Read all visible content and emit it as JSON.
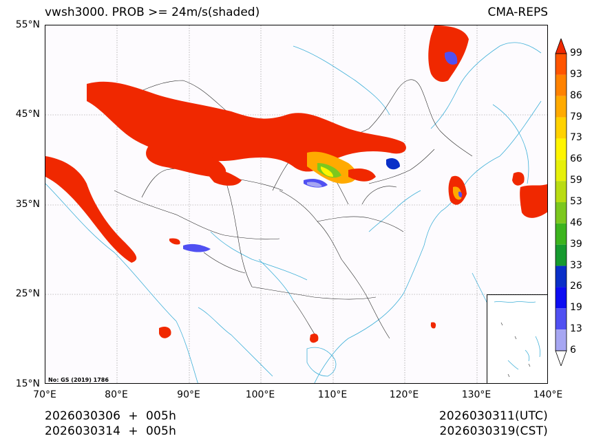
{
  "header": {
    "title_left": "vwsh3000. PROB >= 24m/s(shaded)",
    "title_right": "CMA-REPS"
  },
  "map": {
    "lat_ticks": [
      "55°N",
      "45°N",
      "35°N",
      "25°N",
      "15°N"
    ],
    "lon_ticks": [
      "70°E",
      "80°E",
      "90°E",
      "100°E",
      "110°E",
      "120°E",
      "130°E",
      "140°E"
    ],
    "copyright": "No: GS (2019) 1786"
  },
  "colorbar": {
    "labels": [
      "6",
      "13",
      "19",
      "26",
      "33",
      "39",
      "46",
      "53",
      "59",
      "66",
      "73",
      "79",
      "86",
      "93",
      "99"
    ],
    "colors": [
      "#a6a6f2",
      "#5050f2",
      "#0d0df2",
      "#0a2fc8",
      "#169a2f",
      "#3cb41e",
      "#7cc81e",
      "#b9dc12",
      "#e6f00a",
      "#fff500",
      "#ffd200",
      "#ffaa00",
      "#ff8200",
      "#ff5500",
      "#f02800"
    ]
  },
  "footer": {
    "init_line1": "2026030306  +  005h",
    "init_line2": "2026030314  +  005h",
    "valid_utc": "2026030311(UTC)",
    "valid_cst": "2026030319(CST)"
  }
}
